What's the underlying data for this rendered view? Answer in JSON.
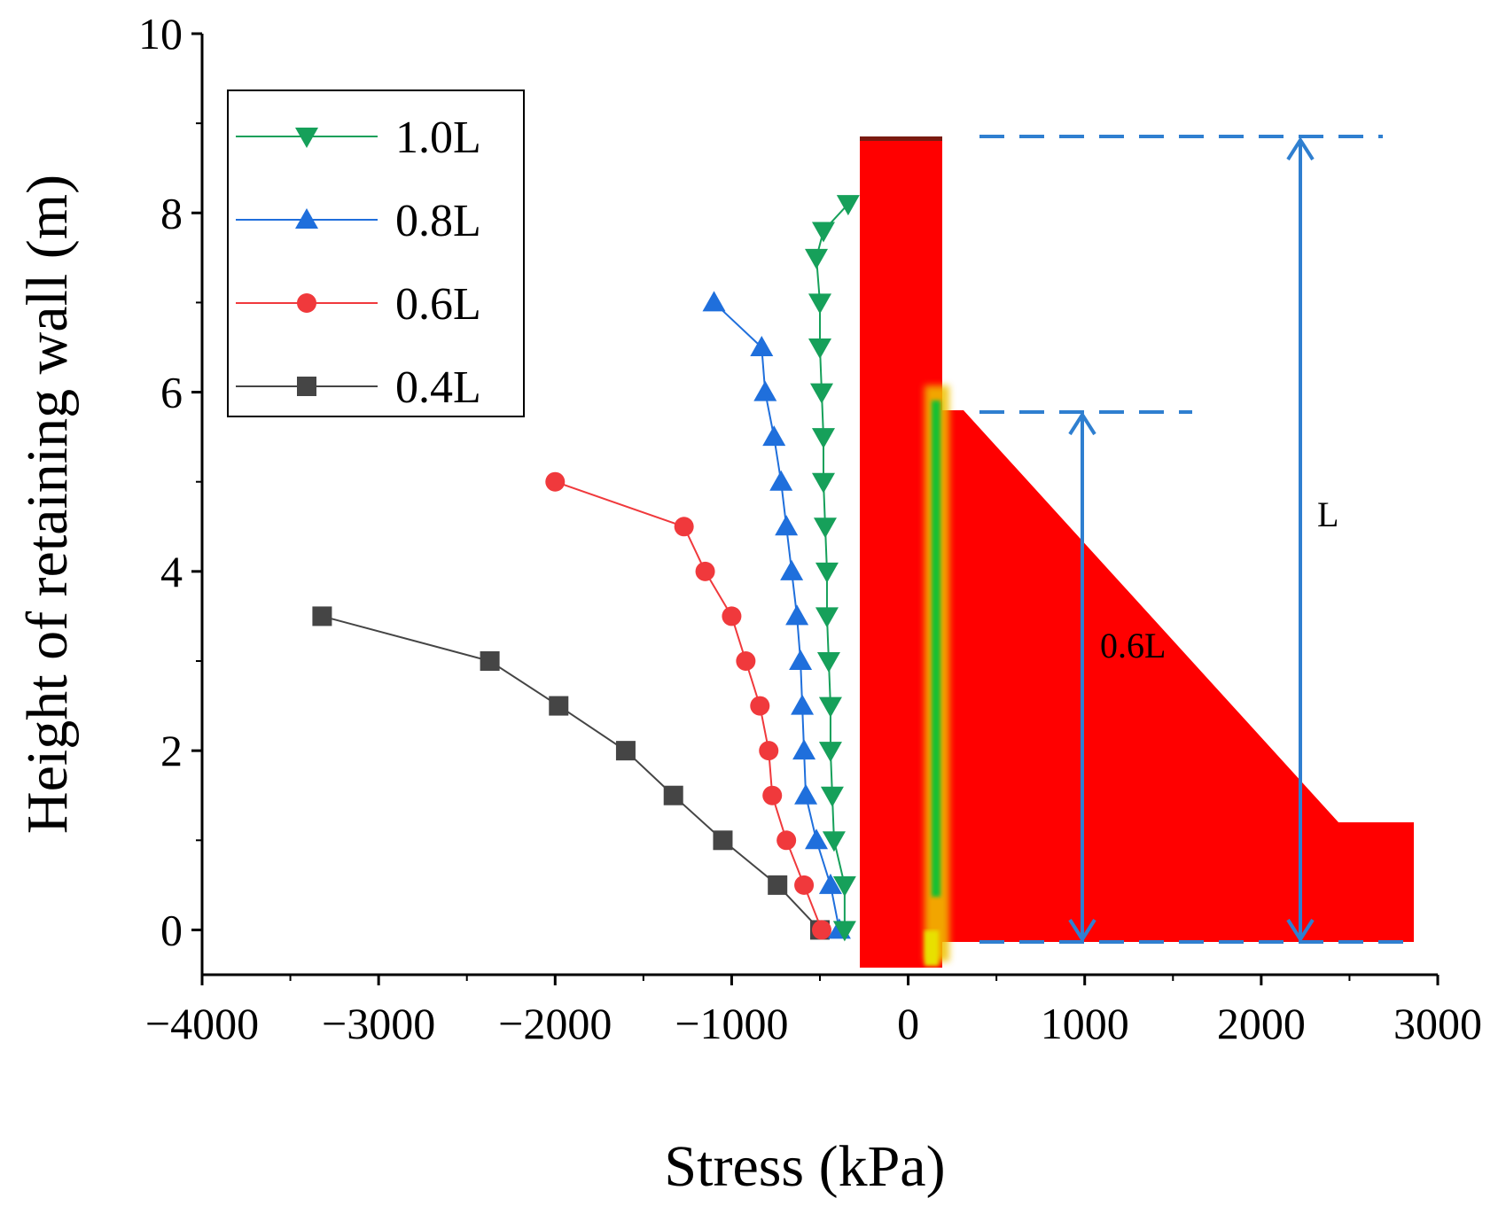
{
  "chart_data": {
    "type": "line",
    "title": "",
    "xlabel": "Stress (kPa)",
    "ylabel": "Height of retaining wall (m)",
    "xlim": [
      -4000,
      3000
    ],
    "ylim": [
      -0.5,
      10
    ],
    "xticks": [
      -4000,
      -3000,
      -2000,
      -1000,
      0,
      1000,
      2000,
      3000
    ],
    "xtick_labels": [
      "−4000",
      "−3000",
      "−2000",
      "−1000",
      "0",
      "1000",
      "2000",
      "3000"
    ],
    "yticks": [
      0,
      2,
      4,
      6,
      8,
      10
    ],
    "ytick_labels": [
      "0",
      "2",
      "4",
      "6",
      "8",
      "10"
    ],
    "legend_position": "top-left",
    "series": [
      {
        "name": "1.0L",
        "color": "#16a05a",
        "marker": "triangle-down",
        "x": [
          -360,
          -360,
          -420,
          -430,
          -440,
          -440,
          -450,
          -460,
          -460,
          -470,
          -480,
          -480,
          -490,
          -500,
          -500,
          -520,
          -480,
          -340
        ],
        "y": [
          0,
          0.5,
          1.0,
          1.5,
          2.0,
          2.5,
          3.0,
          3.5,
          4.0,
          4.5,
          5.0,
          5.5,
          6.0,
          6.5,
          7.0,
          7.5,
          7.8,
          8.1
        ]
      },
      {
        "name": "0.8L",
        "color": "#1f6fdc",
        "marker": "triangle-up",
        "x": [
          -390,
          -440,
          -520,
          -580,
          -590,
          -600,
          -610,
          -630,
          -660,
          -690,
          -720,
          -760,
          -810,
          -830,
          -1100
        ],
        "y": [
          0,
          0.5,
          1.0,
          1.5,
          2.0,
          2.5,
          3.0,
          3.5,
          4.0,
          4.5,
          5.0,
          5.5,
          6.0,
          6.5,
          7.0
        ]
      },
      {
        "name": "0.6L",
        "color": "#f0393c",
        "marker": "circle",
        "x": [
          -490,
          -590,
          -690,
          -770,
          -790,
          -840,
          -920,
          -1000,
          -1150,
          -1270,
          -2000
        ],
        "y": [
          0,
          0.5,
          1.0,
          1.5,
          2.0,
          2.5,
          3.0,
          3.5,
          4.0,
          4.5,
          5.0
        ]
      },
      {
        "name": "0.4L",
        "color": "#454545",
        "marker": "square",
        "x": [
          -500,
          -740,
          -1050,
          -1330,
          -1600,
          -1980,
          -2370,
          -3320
        ],
        "y": [
          0,
          0.5,
          1.0,
          1.5,
          2.0,
          2.5,
          3.0,
          3.5
        ]
      }
    ],
    "annotations": [
      {
        "text": "0.6L"
      },
      {
        "text": "L"
      }
    ]
  }
}
